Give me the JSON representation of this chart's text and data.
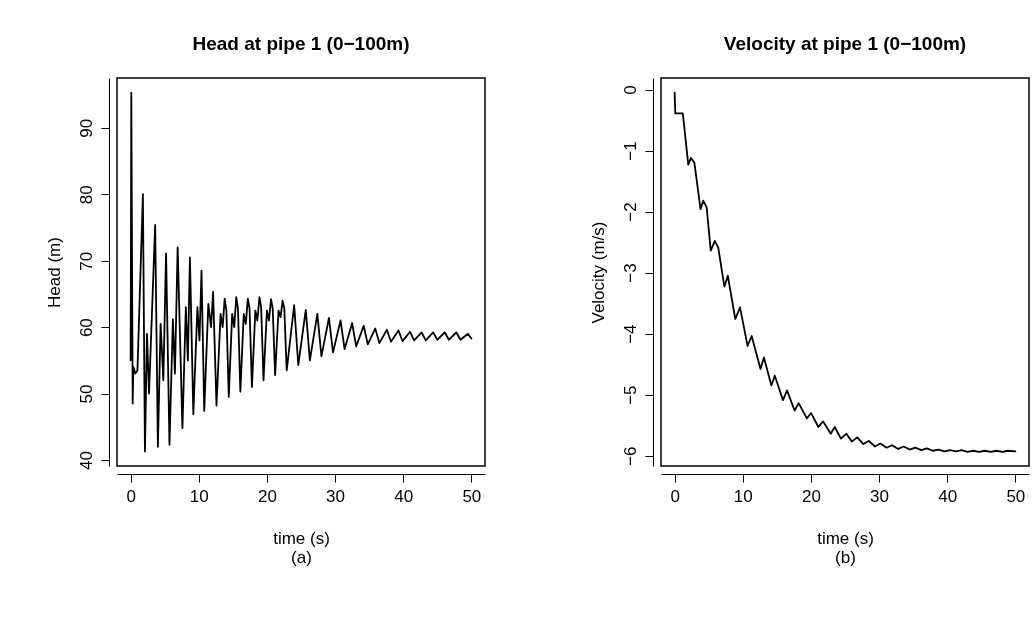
{
  "chart_data": [
    {
      "type": "line",
      "title": "Head at pipe 1 (0−100m)",
      "xlabel": "time (s)",
      "ylabel": "Head (m)",
      "annotations": [
        "(a)"
      ],
      "xlim": [
        -2,
        52
      ],
      "xticks": [
        0,
        10,
        20,
        30,
        40,
        50
      ],
      "ylim": [
        39.1,
        97.5
      ],
      "yticks": [
        40,
        50,
        60,
        70,
        80,
        90
      ],
      "grid": false,
      "marker": "none",
      "line_style": "solid",
      "series": [
        {
          "color": "#000000",
          "x": [
            0,
            0.1,
            0.3,
            0.4,
            0.7,
            1.0,
            1.8,
            2.1,
            2.4,
            2.7,
            3.6,
            4.0,
            4.4,
            4.8,
            5.2,
            5.7,
            6.2,
            6.5,
            6.9,
            7.6,
            8.1,
            8.4,
            8.7,
            9.2,
            9.8,
            10.1,
            10.4,
            10.8,
            11.4,
            11.8,
            12.1,
            12.6,
            13.2,
            13.5,
            13.8,
            14.05,
            14.4,
            14.9,
            15.2,
            15.5,
            15.75,
            16.1,
            16.6,
            16.9,
            17.2,
            17.45,
            17.8,
            18.3,
            18.6,
            18.9,
            19.15,
            19.5,
            20.0,
            20.3,
            20.6,
            20.85,
            21.2,
            21.7,
            22.0,
            22.3,
            22.55,
            22.9,
            24.0,
            24.6,
            25.7,
            26.3,
            27.4,
            28.0,
            29.1,
            29.7,
            30.8,
            31.4,
            32.5,
            33.1,
            34.2,
            34.8,
            35.9,
            36.5,
            37.6,
            38.2,
            39.3,
            39.9,
            41.0,
            41.6,
            42.7,
            43.3,
            44.4,
            45.0,
            46.1,
            46.7,
            47.8,
            48.4,
            49.5,
            50.0
          ],
          "values": [
            55,
            95.3,
            48.5,
            54,
            53,
            53.5,
            80,
            41.3,
            59,
            50,
            75.4,
            42,
            60.5,
            52,
            71.1,
            42.3,
            61.2,
            53,
            72,
            44.8,
            63,
            55,
            70.5,
            46.9,
            63,
            58,
            68.5,
            47.4,
            63.5,
            60,
            65.3,
            48.2,
            62,
            60,
            64.3,
            62.5,
            49.5,
            62,
            60,
            64.5,
            62.8,
            50.3,
            62,
            60.5,
            64.3,
            62.8,
            51,
            62.5,
            61,
            64.5,
            63,
            52,
            62.5,
            61,
            64.2,
            62.8,
            52.8,
            62.5,
            61.5,
            64,
            62.8,
            53.5,
            63.3,
            54.3,
            62.6,
            55,
            62,
            55.6,
            61.4,
            56.2,
            61,
            56.7,
            60.6,
            57.1,
            60.2,
            57.4,
            59.8,
            57.6,
            59.6,
            57.8,
            59.5,
            57.9,
            59.3,
            58,
            59.2,
            58,
            59.2,
            58.1,
            59.2,
            58.1,
            59.2,
            58.1,
            59,
            58.3
          ]
        }
      ]
    },
    {
      "type": "line",
      "title": "Velocity at pipe 1 (0−100m)",
      "xlabel": "time (s)",
      "ylabel": "Velocity (m/s)",
      "annotations": [
        "(b)"
      ],
      "xlim": [
        -2,
        52
      ],
      "xticks": [
        0,
        10,
        20,
        30,
        40,
        50
      ],
      "ylim": [
        -6.17,
        0.19
      ],
      "yticks": [
        0,
        -1,
        -2,
        -3,
        -4,
        -5,
        -6
      ],
      "grid": false,
      "marker": "none",
      "line_style": "solid",
      "series": [
        {
          "color": "#000000",
          "x": [
            0,
            0.1,
            1.2,
            2.0,
            2.4,
            2.9,
            3.8,
            4.2,
            4.7,
            5.3,
            5.9,
            6.4,
            7.3,
            7.8,
            8.9,
            9.6,
            10.7,
            11.3,
            12.6,
            13.1,
            14.2,
            14.7,
            15.9,
            16.5,
            17.6,
            18.2,
            19.4,
            20.0,
            21.1,
            21.8,
            22.9,
            23.5,
            24.4,
            25.2,
            26.0,
            26.8,
            27.7,
            28.5,
            29.4,
            30.2,
            31.1,
            31.9,
            32.8,
            33.6,
            34.5,
            35.3,
            36.2,
            37.0,
            37.9,
            38.7,
            39.6,
            40.4,
            41.3,
            42.1,
            43.0,
            43.8,
            44.7,
            45.5,
            46.4,
            47.2,
            48.1,
            48.9,
            50.0
          ],
          "values": [
            -0.05,
            -0.39,
            -0.39,
            -1.23,
            -1.12,
            -1.2,
            -1.96,
            -1.82,
            -1.93,
            -2.64,
            -2.48,
            -2.59,
            -3.23,
            -3.05,
            -3.76,
            -3.57,
            -4.2,
            -4.04,
            -4.58,
            -4.39,
            -4.85,
            -4.69,
            -5.09,
            -4.93,
            -5.26,
            -5.14,
            -5.39,
            -5.3,
            -5.53,
            -5.44,
            -5.64,
            -5.53,
            -5.72,
            -5.64,
            -5.77,
            -5.7,
            -5.81,
            -5.76,
            -5.85,
            -5.8,
            -5.87,
            -5.83,
            -5.89,
            -5.85,
            -5.9,
            -5.87,
            -5.91,
            -5.88,
            -5.92,
            -5.9,
            -5.93,
            -5.91,
            -5.93,
            -5.91,
            -5.94,
            -5.92,
            -5.94,
            -5.92,
            -5.94,
            -5.92,
            -5.94,
            -5.92,
            -5.93
          ]
        }
      ]
    }
  ]
}
